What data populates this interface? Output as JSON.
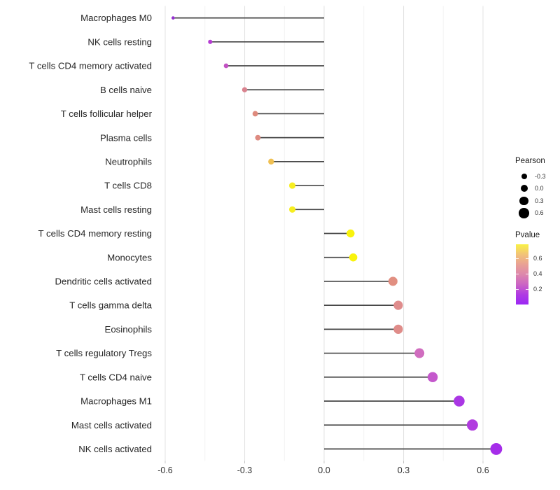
{
  "chart_data": {
    "type": "scatter",
    "variant": "lollipop",
    "title": "",
    "xlabel": "",
    "ylabel": "",
    "xlim": [
      -0.63,
      0.68
    ],
    "grid": "vertical-only",
    "x_ticks": {
      "values": [
        -0.6,
        -0.3,
        0.0,
        0.3,
        0.6
      ],
      "labels": [
        "-0.6",
        "-0.3",
        "0.0",
        "0.3",
        "0.6"
      ]
    },
    "x_minor_ticks": [
      -0.45,
      -0.15,
      0.15,
      0.45
    ],
    "points": [
      {
        "label": "Macrophages M0",
        "pearson": -0.57,
        "color": "#9531D0"
      },
      {
        "label": "NK cells resting",
        "pearson": -0.43,
        "color": "#B53CD3"
      },
      {
        "label": "T cells CD4 memory activated",
        "pearson": -0.37,
        "color": "#C252C3"
      },
      {
        "label": "B cells naive",
        "pearson": -0.3,
        "color": "#D9838F"
      },
      {
        "label": "T cells follicular helper",
        "pearson": -0.26,
        "color": "#DE8A7D"
      },
      {
        "label": "Plasma cells",
        "pearson": -0.25,
        "color": "#DE8B81"
      },
      {
        "label": "Neutrophils",
        "pearson": -0.2,
        "color": "#F0C052"
      },
      {
        "label": "T cells CD8",
        "pearson": -0.12,
        "color": "#F7EE20"
      },
      {
        "label": "Mast cells resting",
        "pearson": -0.12,
        "color": "#F7EE20"
      },
      {
        "label": "T cells CD4 memory resting",
        "pearson": 0.1,
        "color": "#F9F30D"
      },
      {
        "label": "Monocytes",
        "pearson": 0.11,
        "color": "#F9F30D"
      },
      {
        "label": "Dendritic cells activated",
        "pearson": 0.26,
        "color": "#E18F81"
      },
      {
        "label": "T cells gamma delta",
        "pearson": 0.28,
        "color": "#DF8C8C"
      },
      {
        "label": "Eosinophils",
        "pearson": 0.28,
        "color": "#DF8C89"
      },
      {
        "label": "T cells regulatory  Tregs",
        "pearson": 0.36,
        "color": "#D06DBF"
      },
      {
        "label": "T cells CD4 naive",
        "pearson": 0.41,
        "color": "#C458CC"
      },
      {
        "label": "Macrophages M1",
        "pearson": 0.51,
        "color": "#AA37E4"
      },
      {
        "label": "Mast cells activated",
        "pearson": 0.56,
        "color": "#B13CDF"
      },
      {
        "label": "NK cells activated",
        "pearson": 0.65,
        "color": "#A52DE9"
      }
    ],
    "legends": {
      "size": {
        "title": "Pearson",
        "dot_color": "#000000",
        "entries": [
          {
            "label": "-0.3",
            "diameter": 8
          },
          {
            "label": "0.0",
            "diameter": 10
          },
          {
            "label": "0.3",
            "diameter": 12.5
          },
          {
            "label": "0.6",
            "diameter": 14.5
          }
        ]
      },
      "color": {
        "title": "Pvalue",
        "tick_labels": {
          "t06": "0.6",
          "t04": "0.4",
          "t02": "0.2"
        },
        "gradient_top_to_bottom": [
          "#F9F245",
          "#F2C279",
          "#E9A294",
          "#DD87AC",
          "#CB64C4",
          "#B03BE2",
          "#9B28F4"
        ]
      }
    },
    "colors": {
      "background": "#FFFFFF",
      "stem": "#464646",
      "grid_major": "#E5E5E5",
      "grid_minor": "#F3F3F3",
      "axis_tick": "#C8C8C8",
      "axis_text": "#333333",
      "y_label_text": "#262626"
    },
    "size_encoding": {
      "diameter_base": 10.4,
      "diameter_per_unit": 10,
      "min_diameter": 3.6
    }
  }
}
